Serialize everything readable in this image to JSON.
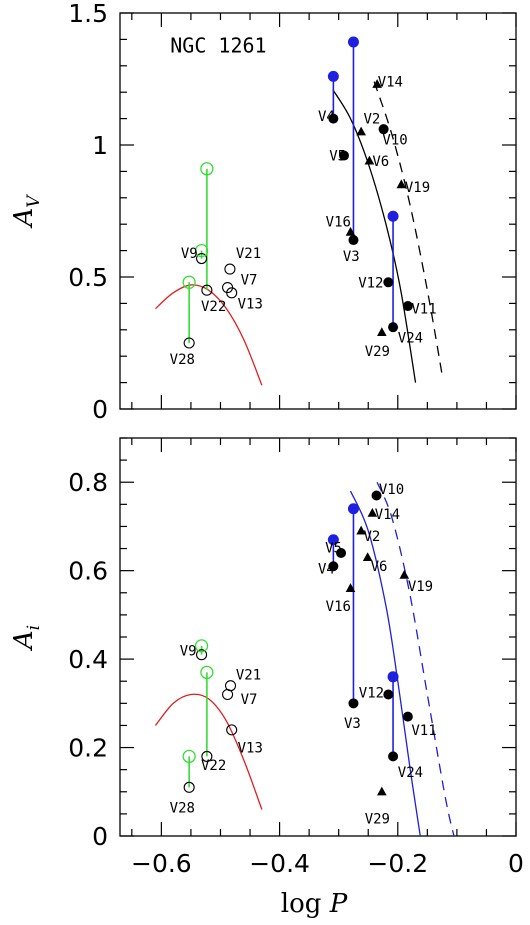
{
  "chart_data": [
    {
      "type": "scatter",
      "panel": "top",
      "title": "NGC 1261",
      "xlabel": "log P",
      "ylabel": "A_V",
      "ylabel_main": "A",
      "ylabel_sub": "V",
      "xlim": [
        -0.67,
        0
      ],
      "ylim": [
        0,
        1.5
      ],
      "yticks": [
        {
          "value": 0,
          "label": "0"
        },
        {
          "value": 0.5,
          "label": "0.5"
        },
        {
          "value": 1,
          "label": "1"
        },
        {
          "value": 1.5,
          "label": "1.5"
        }
      ],
      "colors": {
        "rrab": "#000000",
        "rrc": "#000000",
        "blue": "#1f1fe0",
        "green": "#33dd33",
        "red": "#e01f1f"
      },
      "series": [
        {
          "marker": "filled-circle",
          "points": [
            {
              "x": -0.309,
              "y": 1.1
            },
            {
              "x": -0.291,
              "y": 0.96
            },
            {
              "x": -0.275,
              "y": 0.64
            },
            {
              "x": -0.224,
              "y": 1.06
            },
            {
              "x": -0.216,
              "y": 0.48
            },
            {
              "x": -0.208,
              "y": 0.31
            },
            {
              "x": -0.183,
              "y": 0.39
            }
          ]
        },
        {
          "marker": "filled-triangle",
          "points": [
            {
              "x": -0.262,
              "y": 1.05
            },
            {
              "x": -0.248,
              "y": 0.94
            },
            {
              "x": -0.235,
              "y": 1.23
            },
            {
              "x": -0.194,
              "y": 0.85
            },
            {
              "x": -0.28,
              "y": 0.67
            },
            {
              "x": -0.227,
              "y": 0.29
            }
          ]
        },
        {
          "marker": "open-circle",
          "points": [
            {
              "x": -0.553,
              "y": 0.25
            },
            {
              "x": -0.532,
              "y": 0.57
            },
            {
              "x": -0.523,
              "y": 0.45
            },
            {
              "x": -0.484,
              "y": 0.53
            },
            {
              "x": -0.488,
              "y": 0.46
            },
            {
              "x": -0.481,
              "y": 0.44
            }
          ]
        },
        {
          "marker": "blue-filled-circle",
          "points": [
            {
              "x": -0.309,
              "y": 1.26
            },
            {
              "x": -0.275,
              "y": 1.39
            },
            {
              "x": -0.208,
              "y": 0.73
            }
          ]
        },
        {
          "marker": "green-open-circle",
          "points": [
            {
              "x": -0.553,
              "y": 0.48
            },
            {
              "x": -0.532,
              "y": 0.6
            },
            {
              "x": -0.523,
              "y": 0.91
            }
          ]
        }
      ],
      "vlines": [
        {
          "color": "blue",
          "x": -0.309,
          "y1": 1.1,
          "y2": 1.26
        },
        {
          "color": "blue",
          "x": -0.275,
          "y1": 0.64,
          "y2": 1.39
        },
        {
          "color": "blue",
          "x": -0.208,
          "y1": 0.31,
          "y2": 0.73
        },
        {
          "color": "green",
          "x": -0.553,
          "y1": 0.25,
          "y2": 0.48
        },
        {
          "color": "green",
          "x": -0.532,
          "y1": 0.57,
          "y2": 0.6
        },
        {
          "color": "green",
          "x": -0.523,
          "y1": 0.45,
          "y2": 0.91
        }
      ],
      "curves": [
        {
          "color": "black",
          "dash": false,
          "points": [
            [
              -0.31,
              1.21
            ],
            [
              -0.28,
              1.1
            ],
            [
              -0.25,
              0.93
            ],
            [
              -0.22,
              0.7
            ],
            [
              -0.195,
              0.45
            ],
            [
              -0.17,
              0.1
            ]
          ]
        },
        {
          "color": "black",
          "dash": true,
          "points": [
            [
              -0.24,
              1.24
            ],
            [
              -0.21,
              1.04
            ],
            [
              -0.18,
              0.78
            ],
            [
              -0.15,
              0.45
            ],
            [
              -0.125,
              0.13
            ]
          ]
        },
        {
          "color": "red",
          "dash": false,
          "points": [
            [
              -0.61,
              0.38
            ],
            [
              -0.58,
              0.44
            ],
            [
              -0.55,
              0.47
            ],
            [
              -0.52,
              0.45
            ],
            [
              -0.49,
              0.38
            ],
            [
              -0.46,
              0.26
            ],
            [
              -0.43,
              0.09
            ]
          ]
        }
      ],
      "annotations": [
        {
          "text": "V14",
          "x": -0.234,
          "y": 1.24
        },
        {
          "text": "V4",
          "x": -0.335,
          "y": 1.11
        },
        {
          "text": "V2",
          "x": -0.258,
          "y": 1.1
        },
        {
          "text": "V10",
          "x": -0.226,
          "y": 1.02
        },
        {
          "text": "V5",
          "x": -0.316,
          "y": 0.96
        },
        {
          "text": "V6",
          "x": -0.243,
          "y": 0.94
        },
        {
          "text": "V19",
          "x": -0.188,
          "y": 0.84
        },
        {
          "text": "V16",
          "x": -0.322,
          "y": 0.71
        },
        {
          "text": "V3",
          "x": -0.293,
          "y": 0.58
        },
        {
          "text": "V12",
          "x": -0.267,
          "y": 0.48
        },
        {
          "text": "V11",
          "x": -0.177,
          "y": 0.38
        },
        {
          "text": "V24",
          "x": -0.2,
          "y": 0.27
        },
        {
          "text": "V29",
          "x": -0.256,
          "y": 0.22
        },
        {
          "text": "V9",
          "x": -0.567,
          "y": 0.59
        },
        {
          "text": "V21",
          "x": -0.474,
          "y": 0.59
        },
        {
          "text": "V7",
          "x": -0.466,
          "y": 0.49
        },
        {
          "text": "V22",
          "x": -0.533,
          "y": 0.39
        },
        {
          "text": "V13",
          "x": -0.471,
          "y": 0.4
        },
        {
          "text": "V28",
          "x": -0.586,
          "y": 0.19
        }
      ]
    },
    {
      "type": "scatter",
      "panel": "bottom",
      "xlabel": "log P",
      "ylabel": "A_i",
      "ylabel_main": "A",
      "ylabel_sub": "i",
      "xlim": [
        -0.67,
        0
      ],
      "ylim": [
        0,
        0.9
      ],
      "xticks": [
        {
          "value": -0.6,
          "label": "−0.6"
        },
        {
          "value": -0.4,
          "label": "−0.4"
        },
        {
          "value": -0.2,
          "label": "−0.2"
        },
        {
          "value": 0,
          "label": "0"
        }
      ],
      "yticks": [
        {
          "value": 0,
          "label": "0"
        },
        {
          "value": 0.2,
          "label": "0.2"
        },
        {
          "value": 0.4,
          "label": "0.4"
        },
        {
          "value": 0.6,
          "label": "0.6"
        },
        {
          "value": 0.8,
          "label": "0.8"
        }
      ],
      "series": [
        {
          "marker": "filled-circle",
          "points": [
            {
              "x": -0.236,
              "y": 0.77
            },
            {
              "x": -0.296,
              "y": 0.64
            },
            {
              "x": -0.309,
              "y": 0.61
            },
            {
              "x": -0.275,
              "y": 0.3
            },
            {
              "x": -0.216,
              "y": 0.32
            },
            {
              "x": -0.208,
              "y": 0.18
            },
            {
              "x": -0.183,
              "y": 0.27
            }
          ]
        },
        {
          "marker": "filled-triangle",
          "points": [
            {
              "x": -0.243,
              "y": 0.73
            },
            {
              "x": -0.262,
              "y": 0.69
            },
            {
              "x": -0.251,
              "y": 0.63
            },
            {
              "x": -0.189,
              "y": 0.59
            },
            {
              "x": -0.28,
              "y": 0.56
            },
            {
              "x": -0.227,
              "y": 0.1
            }
          ]
        },
        {
          "marker": "open-circle",
          "points": [
            {
              "x": -0.553,
              "y": 0.11
            },
            {
              "x": -0.532,
              "y": 0.41
            },
            {
              "x": -0.523,
              "y": 0.18
            },
            {
              "x": -0.483,
              "y": 0.34
            },
            {
              "x": -0.488,
              "y": 0.32
            },
            {
              "x": -0.481,
              "y": 0.24
            }
          ]
        },
        {
          "marker": "blue-filled-circle",
          "points": [
            {
              "x": -0.309,
              "y": 0.67
            },
            {
              "x": -0.275,
              "y": 0.74
            },
            {
              "x": -0.208,
              "y": 0.36
            }
          ]
        },
        {
          "marker": "green-open-circle",
          "points": [
            {
              "x": -0.553,
              "y": 0.18
            },
            {
              "x": -0.532,
              "y": 0.43
            },
            {
              "x": -0.523,
              "y": 0.37
            }
          ]
        }
      ],
      "vlines": [
        {
          "color": "blue",
          "x": -0.309,
          "y1": 0.61,
          "y2": 0.67
        },
        {
          "color": "blue",
          "x": -0.275,
          "y1": 0.3,
          "y2": 0.74
        },
        {
          "color": "blue",
          "x": -0.208,
          "y1": 0.18,
          "y2": 0.36
        },
        {
          "color": "green",
          "x": -0.553,
          "y1": 0.11,
          "y2": 0.18
        },
        {
          "color": "green",
          "x": -0.532,
          "y1": 0.41,
          "y2": 0.43
        },
        {
          "color": "green",
          "x": -0.523,
          "y1": 0.18,
          "y2": 0.37
        }
      ],
      "curves": [
        {
          "color": "blue",
          "dash": false,
          "points": [
            [
              -0.28,
              0.78
            ],
            [
              -0.25,
              0.69
            ],
            [
              -0.22,
              0.52
            ],
            [
              -0.2,
              0.35
            ],
            [
              -0.18,
              0.16
            ],
            [
              -0.162,
              0.0
            ]
          ]
        },
        {
          "color": "blue",
          "dash": true,
          "points": [
            [
              -0.235,
              0.8
            ],
            [
              -0.21,
              0.72
            ],
            [
              -0.18,
              0.55
            ],
            [
              -0.15,
              0.32
            ],
            [
              -0.12,
              0.09
            ],
            [
              -0.105,
              0.0
            ]
          ]
        },
        {
          "color": "red",
          "dash": false,
          "points": [
            [
              -0.61,
              0.25
            ],
            [
              -0.58,
              0.3
            ],
            [
              -0.55,
              0.32
            ],
            [
              -0.52,
              0.31
            ],
            [
              -0.49,
              0.26
            ],
            [
              -0.46,
              0.17
            ],
            [
              -0.43,
              0.06
            ]
          ]
        }
      ],
      "annotations": [
        {
          "text": "V10",
          "x": -0.232,
          "y": 0.785
        },
        {
          "text": "V14",
          "x": -0.239,
          "y": 0.728
        },
        {
          "text": "V2",
          "x": -0.258,
          "y": 0.678
        },
        {
          "text": "V5",
          "x": -0.323,
          "y": 0.652
        },
        {
          "text": "V4",
          "x": -0.335,
          "y": 0.605
        },
        {
          "text": "V6",
          "x": -0.246,
          "y": 0.61
        },
        {
          "text": "V19",
          "x": -0.183,
          "y": 0.565
        },
        {
          "text": "V16",
          "x": -0.322,
          "y": 0.52
        },
        {
          "text": "V21",
          "x": -0.474,
          "y": 0.365
        },
        {
          "text": "V9",
          "x": -0.569,
          "y": 0.42
        },
        {
          "text": "V7",
          "x": -0.466,
          "y": 0.31
        },
        {
          "text": "V3",
          "x": -0.291,
          "y": 0.255
        },
        {
          "text": "V12",
          "x": -0.266,
          "y": 0.325
        },
        {
          "text": "V11",
          "x": -0.177,
          "y": 0.24
        },
        {
          "text": "V13",
          "x": -0.471,
          "y": 0.2
        },
        {
          "text": "V22",
          "x": -0.533,
          "y": 0.16
        },
        {
          "text": "V24",
          "x": -0.2,
          "y": 0.145
        },
        {
          "text": "V28",
          "x": -0.586,
          "y": 0.065
        },
        {
          "text": "V29",
          "x": -0.256,
          "y": 0.04
        }
      ]
    }
  ]
}
